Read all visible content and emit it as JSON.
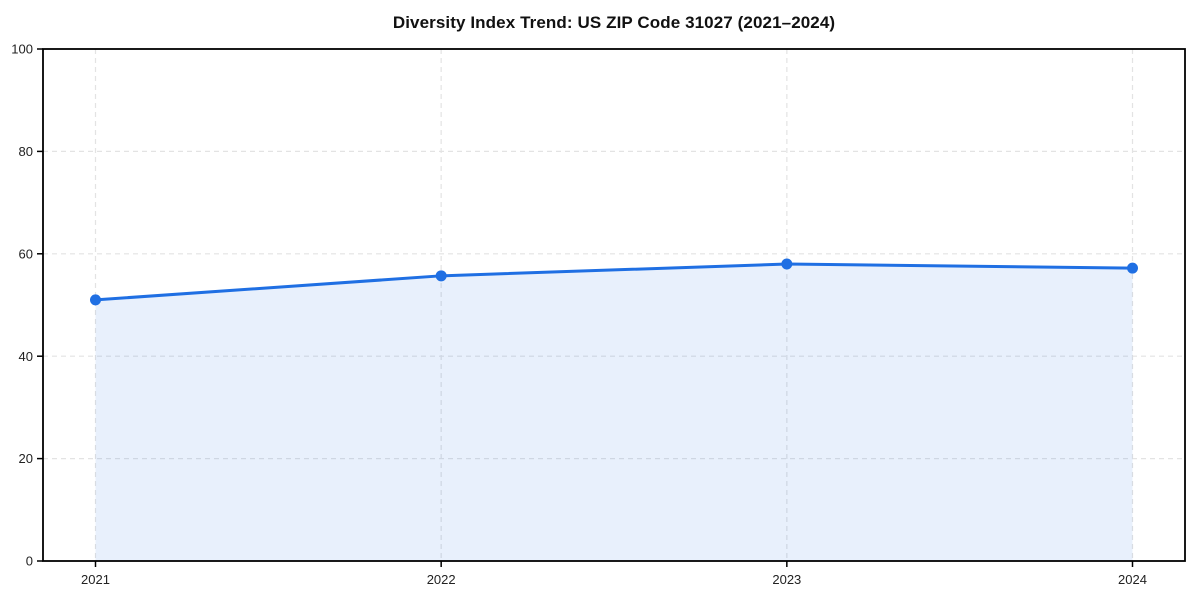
{
  "chart_data": {
    "type": "area",
    "title": "Diversity Index Trend: US ZIP Code 31027 (2021–2024)",
    "x": [
      "2021",
      "2022",
      "2023",
      "2024"
    ],
    "series": [
      {
        "name": "Diversity Index",
        "values": [
          51.0,
          55.7,
          58.0,
          57.2
        ]
      }
    ],
    "xlabel": "",
    "ylabel": "",
    "ylim": [
      0,
      100
    ],
    "yticks": [
      0,
      20,
      40,
      60,
      80,
      100
    ],
    "grid": true,
    "legend": "none",
    "line_color": "#1f6fe3",
    "marker_color": "#1f6fe3",
    "fill_color": "#1f6fe3",
    "fill_opacity": 0.1,
    "grid_color": "#e3e3e3",
    "axis_color": "#000000",
    "tick_label_color": "#222222",
    "title_color": "#111111"
  }
}
